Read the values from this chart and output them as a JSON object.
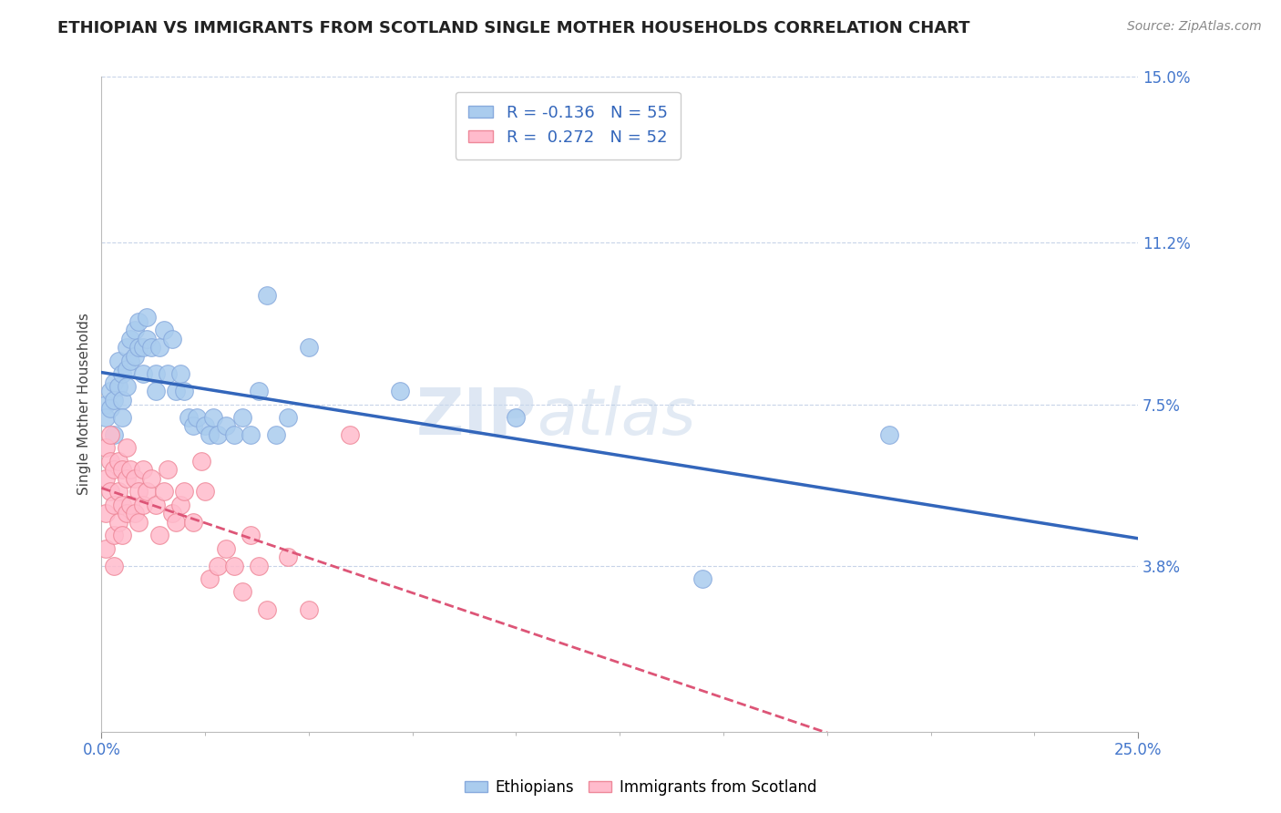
{
  "title": "ETHIOPIAN VS IMMIGRANTS FROM SCOTLAND SINGLE MOTHER HOUSEHOLDS CORRELATION CHART",
  "source_text": "Source: ZipAtlas.com",
  "ylabel": "Single Mother Households",
  "xlim": [
    0.0,
    0.25
  ],
  "ylim": [
    0.0,
    0.15
  ],
  "yticks": [
    0.038,
    0.075,
    0.112,
    0.15
  ],
  "ytick_labels": [
    "3.8%",
    "7.5%",
    "11.2%",
    "15.0%"
  ],
  "xtick_labels": [
    "0.0%",
    "25.0%"
  ],
  "watermark": "ZIPatlas",
  "background_color": "#ffffff",
  "grid_color": "#c8d4e8",
  "title_fontsize": 13,
  "axis_label_fontsize": 11,
  "tick_fontsize": 12,
  "legend_fontsize": 13,
  "ethiopians": {
    "name": "Ethiopians",
    "marker_facecolor": "#aaccee",
    "marker_edgecolor": "#88aadd",
    "trend_color": "#3366bb",
    "trend_style": "solid",
    "R": -0.136,
    "N": 55,
    "x": [
      0.001,
      0.001,
      0.002,
      0.002,
      0.003,
      0.003,
      0.003,
      0.004,
      0.004,
      0.005,
      0.005,
      0.005,
      0.006,
      0.006,
      0.006,
      0.007,
      0.007,
      0.008,
      0.008,
      0.009,
      0.009,
      0.01,
      0.01,
      0.011,
      0.011,
      0.012,
      0.013,
      0.013,
      0.014,
      0.015,
      0.016,
      0.017,
      0.018,
      0.019,
      0.02,
      0.021,
      0.022,
      0.023,
      0.025,
      0.026,
      0.027,
      0.028,
      0.03,
      0.032,
      0.034,
      0.036,
      0.038,
      0.04,
      0.042,
      0.045,
      0.05,
      0.072,
      0.1,
      0.145,
      0.19
    ],
    "y": [
      0.075,
      0.072,
      0.078,
      0.074,
      0.08,
      0.076,
      0.068,
      0.085,
      0.079,
      0.082,
      0.076,
      0.072,
      0.088,
      0.083,
      0.079,
      0.09,
      0.085,
      0.092,
      0.086,
      0.094,
      0.088,
      0.088,
      0.082,
      0.095,
      0.09,
      0.088,
      0.082,
      0.078,
      0.088,
      0.092,
      0.082,
      0.09,
      0.078,
      0.082,
      0.078,
      0.072,
      0.07,
      0.072,
      0.07,
      0.068,
      0.072,
      0.068,
      0.07,
      0.068,
      0.072,
      0.068,
      0.078,
      0.1,
      0.068,
      0.072,
      0.088,
      0.078,
      0.072,
      0.035,
      0.068
    ]
  },
  "scotland": {
    "name": "Immigrants from Scotland",
    "marker_facecolor": "#ffbbcc",
    "marker_edgecolor": "#ee8899",
    "trend_color": "#dd5577",
    "trend_style": "solid",
    "R": 0.272,
    "N": 52,
    "x": [
      0.001,
      0.001,
      0.001,
      0.001,
      0.002,
      0.002,
      0.002,
      0.003,
      0.003,
      0.003,
      0.003,
      0.004,
      0.004,
      0.004,
      0.005,
      0.005,
      0.005,
      0.006,
      0.006,
      0.006,
      0.007,
      0.007,
      0.008,
      0.008,
      0.009,
      0.009,
      0.01,
      0.01,
      0.011,
      0.012,
      0.013,
      0.014,
      0.015,
      0.016,
      0.017,
      0.018,
      0.019,
      0.02,
      0.022,
      0.024,
      0.025,
      0.026,
      0.028,
      0.03,
      0.032,
      0.034,
      0.036,
      0.038,
      0.04,
      0.045,
      0.05,
      0.06
    ],
    "y": [
      0.065,
      0.058,
      0.05,
      0.042,
      0.068,
      0.062,
      0.055,
      0.06,
      0.052,
      0.045,
      0.038,
      0.062,
      0.055,
      0.048,
      0.06,
      0.052,
      0.045,
      0.065,
      0.058,
      0.05,
      0.06,
      0.052,
      0.058,
      0.05,
      0.055,
      0.048,
      0.06,
      0.052,
      0.055,
      0.058,
      0.052,
      0.045,
      0.055,
      0.06,
      0.05,
      0.048,
      0.052,
      0.055,
      0.048,
      0.062,
      0.055,
      0.035,
      0.038,
      0.042,
      0.038,
      0.032,
      0.045,
      0.038,
      0.028,
      0.04,
      0.028,
      0.068
    ]
  }
}
